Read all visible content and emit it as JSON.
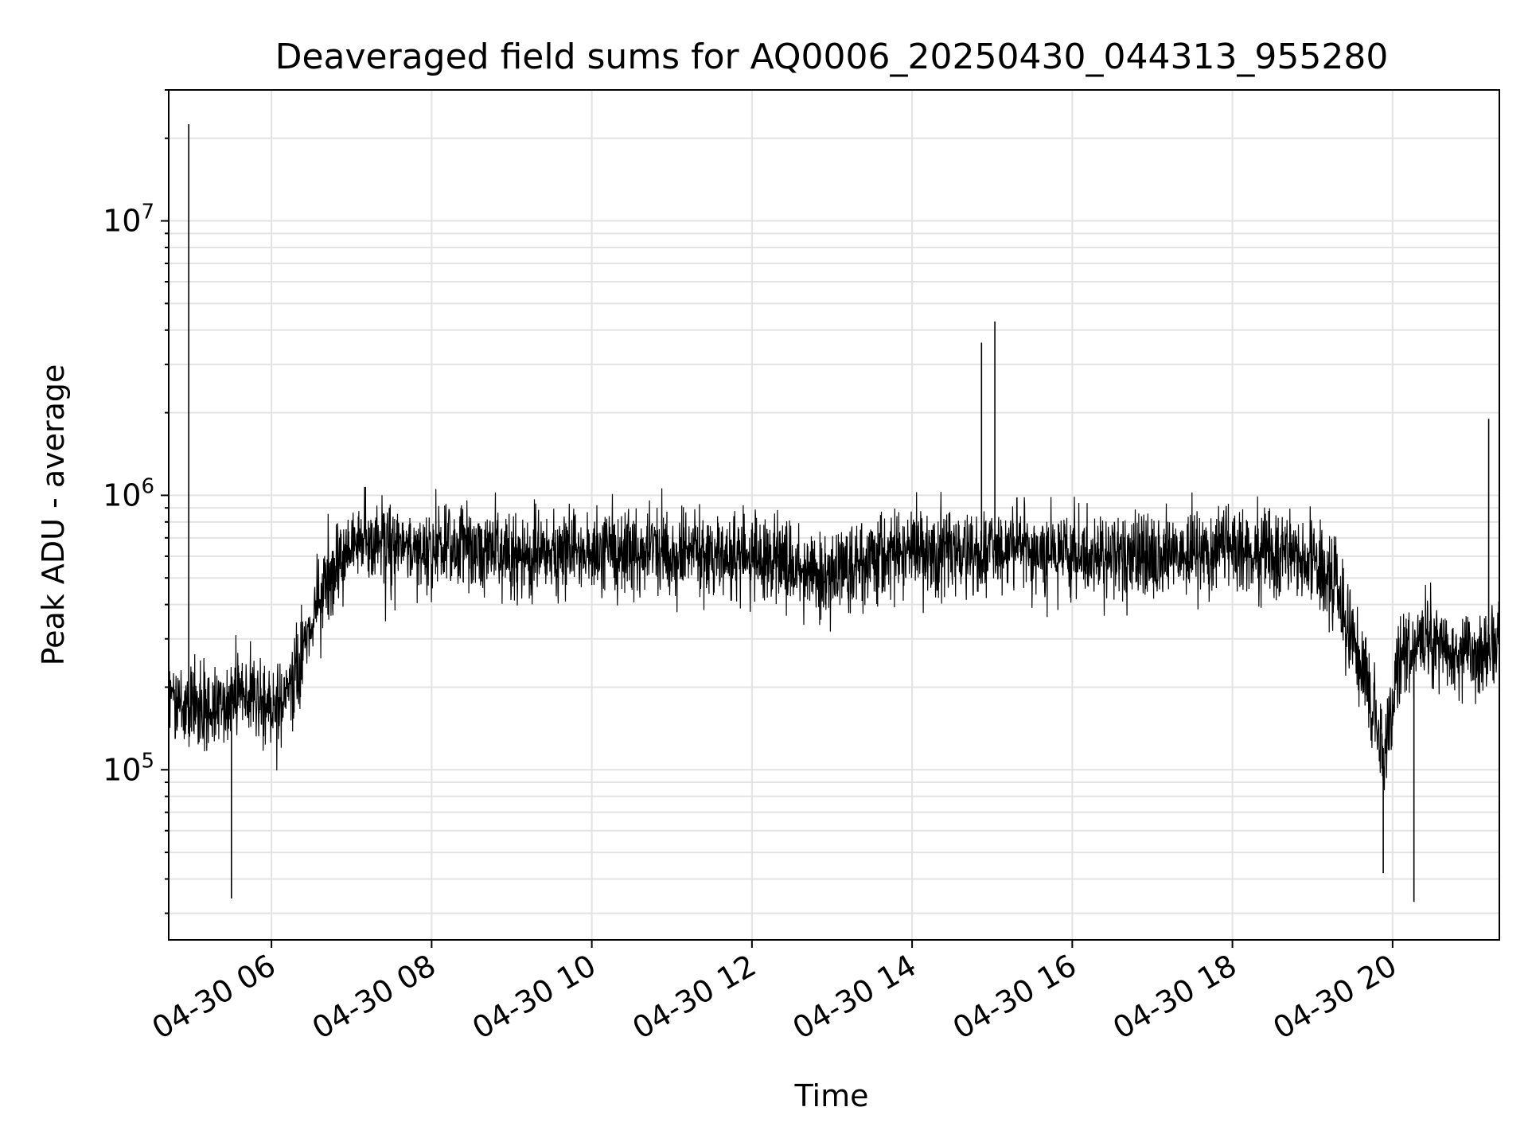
{
  "chart_data": {
    "type": "line",
    "title": "Deaveraged field sums for AQ0006_20250430_044313_955280",
    "xlabel": "Time",
    "ylabel": "Peak ADU - average",
    "yscale": "log",
    "grid": true,
    "line_color": "#000000",
    "grid_color": "#e3e3e3",
    "x_range": [
      "2025-04-30 04:43",
      "2025-04-30 21:20"
    ],
    "ylim": [
      24000,
      30000000
    ],
    "x_ticks": [
      {
        "value": "2025-04-30 06:00",
        "label": "04-30 06"
      },
      {
        "value": "2025-04-30 08:00",
        "label": "04-30 08"
      },
      {
        "value": "2025-04-30 10:00",
        "label": "04-30 10"
      },
      {
        "value": "2025-04-30 12:00",
        "label": "04-30 12"
      },
      {
        "value": "2025-04-30 14:00",
        "label": "04-30 14"
      },
      {
        "value": "2025-04-30 16:00",
        "label": "04-30 16"
      },
      {
        "value": "2025-04-30 18:00",
        "label": "04-30 18"
      },
      {
        "value": "2025-04-30 20:00",
        "label": "04-30 20"
      }
    ],
    "y_ticks": [
      {
        "value": 100000,
        "base": "10",
        "exp": "5"
      },
      {
        "value": 1000000,
        "base": "10",
        "exp": "6"
      },
      {
        "value": 10000000,
        "base": "10",
        "exp": "7"
      }
    ],
    "series": [
      {
        "x": [
          "2025-04-30 04:43",
          "2025-04-30 05:00",
          "2025-04-30 05:15",
          "2025-04-30 05:30",
          "2025-04-30 05:40",
          "2025-04-30 05:50",
          "2025-04-30 06:00",
          "2025-04-30 06:10",
          "2025-04-30 06:20",
          "2025-04-30 06:30",
          "2025-04-30 06:45",
          "2025-04-30 07:00",
          "2025-04-30 07:30",
          "2025-04-30 08:00",
          "2025-04-30 08:30",
          "2025-04-30 09:00",
          "2025-04-30 09:30",
          "2025-04-30 10:00",
          "2025-04-30 10:30",
          "2025-04-30 11:00",
          "2025-04-30 11:30",
          "2025-04-30 12:00",
          "2025-04-30 12:30",
          "2025-04-30 13:00",
          "2025-04-30 13:30",
          "2025-04-30 14:00",
          "2025-04-30 14:30",
          "2025-04-30 15:00",
          "2025-04-30 15:30",
          "2025-04-30 16:00",
          "2025-04-30 16:30",
          "2025-04-30 17:00",
          "2025-04-30 17:30",
          "2025-04-30 18:00",
          "2025-04-30 18:30",
          "2025-04-30 19:00",
          "2025-04-30 19:15",
          "2025-04-30 19:30",
          "2025-04-30 19:45",
          "2025-04-30 19:55",
          "2025-04-30 20:05",
          "2025-04-30 20:20",
          "2025-04-30 20:40",
          "2025-04-30 21:00",
          "2025-04-30 21:20"
        ],
        "y": [
          180000,
          170000,
          160000,
          170000,
          200000,
          180000,
          160000,
          190000,
          230000,
          330000,
          550000,
          650000,
          660000,
          650000,
          650000,
          620000,
          610000,
          640000,
          620000,
          600000,
          620000,
          600000,
          540000,
          520000,
          610000,
          620000,
          620000,
          630000,
          620000,
          600000,
          590000,
          600000,
          620000,
          650000,
          600000,
          580000,
          480000,
          300000,
          170000,
          110000,
          260000,
          280000,
          270000,
          260000,
          300000
        ],
        "spikes": [
          {
            "x": "2025-04-30 04:58",
            "y": 22500000
          },
          {
            "x": "2025-04-30 14:52",
            "y": 3600000
          },
          {
            "x": "2025-04-30 15:02",
            "y": 4300000
          },
          {
            "x": "2025-04-30 21:12",
            "y": 1900000
          },
          {
            "x": "2025-04-30 05:30",
            "y": 34000
          },
          {
            "x": "2025-04-30 20:16",
            "y": 33000
          },
          {
            "x": "2025-04-30 19:53",
            "y": 42000
          }
        ]
      }
    ]
  }
}
